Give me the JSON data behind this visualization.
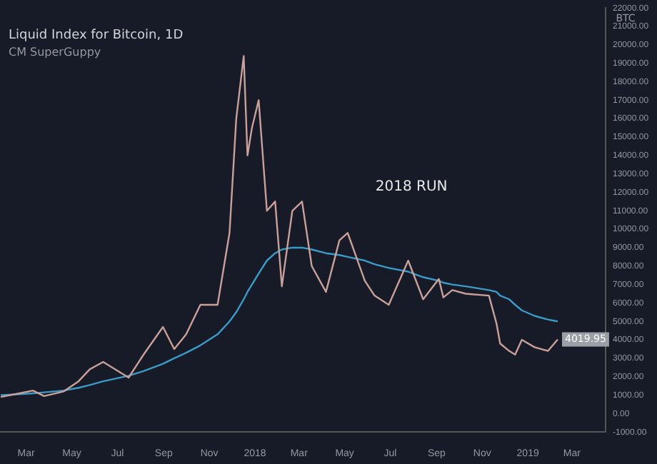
{
  "chart_data": {
    "type": "line",
    "title": "Liquid Index for Bitcoin, 1D",
    "subtitle": "CM SuperGuppy",
    "ylabel": "BTC",
    "annotations": [
      "2018 RUN"
    ],
    "x": [
      "2017-01-26",
      "2017-02-20",
      "2017-03-10",
      "2017-03-25",
      "2017-04-20",
      "2017-05-10",
      "2017-05-25",
      "2017-06-12",
      "2017-07-16",
      "2017-08-05",
      "2017-08-31",
      "2017-09-15",
      "2017-10-01",
      "2017-10-20",
      "2017-11-12",
      "2017-11-28",
      "2017-12-07",
      "2017-12-17",
      "2017-12-22",
      "2017-12-28",
      "2018-01-06",
      "2018-01-17",
      "2018-01-28",
      "2018-02-06",
      "2018-02-20",
      "2018-03-05",
      "2018-03-18",
      "2018-04-06",
      "2018-04-24",
      "2018-05-05",
      "2018-05-28",
      "2018-06-10",
      "2018-06-29",
      "2018-07-25",
      "2018-08-14",
      "2018-09-04",
      "2018-09-10",
      "2018-09-22",
      "2018-10-10",
      "2018-11-10",
      "2018-11-20",
      "2018-11-25",
      "2018-12-07",
      "2018-12-15",
      "2018-12-24",
      "2019-01-10",
      "2019-01-28",
      "2019-02-10"
    ],
    "series": [
      {
        "color": "#c9a19a",
        "values": [
          900,
          1100,
          1250,
          950,
          1200,
          1750,
          2400,
          2800,
          1950,
          3200,
          4700,
          3500,
          4300,
          5900,
          5900,
          9800,
          16000,
          19400,
          14000,
          15500,
          17000,
          11000,
          11500,
          6900,
          11000,
          11500,
          8000,
          6600,
          9400,
          9800,
          7200,
          6400,
          5900,
          8300,
          6200,
          7300,
          6300,
          6700,
          6500,
          6400,
          4900,
          3800,
          3400,
          3200,
          4000,
          3600,
          3400,
          4019.95
        ],
        "value_labels": [
          null,
          null,
          null,
          null,
          null,
          null,
          null,
          null,
          null,
          null,
          null,
          null,
          null,
          null,
          null,
          null,
          null,
          null,
          null,
          null,
          null,
          null,
          null,
          null,
          null,
          null,
          null,
          null,
          null,
          null,
          null,
          null,
          null,
          null,
          null,
          null,
          null,
          null,
          null,
          null,
          null,
          null,
          null,
          null,
          null,
          null,
          null,
          "4019.95"
        ]
      },
      {
        "color": "#3a9bc8",
        "values": [
          1000,
          1050,
          1100,
          1150,
          1250,
          1400,
          1550,
          1750,
          2050,
          2300,
          2700,
          3000,
          3300,
          3700,
          4300,
          5000,
          5500,
          6200,
          6600,
          7000,
          7600,
          8300,
          8700,
          8900,
          9000,
          9000,
          8900,
          8700,
          8600,
          8500,
          8300,
          8100,
          7900,
          7700,
          7400,
          7200,
          7100,
          7000,
          6900,
          6700,
          6600,
          6400,
          6200,
          5900,
          5600,
          5300,
          5100,
          5000
        ]
      }
    ],
    "ylim": [
      -1000,
      22000
    ],
    "yticks": [
      {
        "value": -1000,
        "label": "-1000.00"
      },
      {
        "value": 0,
        "label": "0.00"
      },
      {
        "value": 1000,
        "label": "1000.00"
      },
      {
        "value": 2000,
        "label": "2000.00"
      },
      {
        "value": 3000,
        "label": "3000.00"
      },
      {
        "value": 4000,
        "label": "4000.00"
      },
      {
        "value": 5000,
        "label": "5000.00"
      },
      {
        "value": 6000,
        "label": "6000.00"
      },
      {
        "value": 7000,
        "label": "7000.00"
      },
      {
        "value": 8000,
        "label": "8000.00"
      },
      {
        "value": 9000,
        "label": "9000.00"
      },
      {
        "value": 10000,
        "label": "10000.00"
      },
      {
        "value": 11000,
        "label": "11000.00"
      },
      {
        "value": 12000,
        "label": "12000.00"
      },
      {
        "value": 13000,
        "label": "13000.00"
      },
      {
        "value": 14000,
        "label": "14000.00"
      },
      {
        "value": 15000,
        "label": "15000.00"
      },
      {
        "value": 16000,
        "label": "16000.00"
      },
      {
        "value": 17000,
        "label": "17000.00"
      },
      {
        "value": 18000,
        "label": "18000.00"
      },
      {
        "value": 19000,
        "label": "19000.00"
      },
      {
        "value": 20000,
        "label": "20000.00"
      },
      {
        "value": 21000,
        "label": "21000.00"
      },
      {
        "value": 22000,
        "label": "22000.00"
      }
    ],
    "xlim": [
      "2017-01-25",
      "2019-04-15"
    ],
    "xticks": [
      {
        "value": "2017-03-01",
        "label": "Mar"
      },
      {
        "value": "2017-05-01",
        "label": "May"
      },
      {
        "value": "2017-07-01",
        "label": "Jul"
      },
      {
        "value": "2017-09-01",
        "label": "Sep"
      },
      {
        "value": "2017-11-01",
        "label": "Nov"
      },
      {
        "value": "2018-01-01",
        "label": "2018"
      },
      {
        "value": "2018-03-01",
        "label": "Mar"
      },
      {
        "value": "2018-05-01",
        "label": "May"
      },
      {
        "value": "2018-07-01",
        "label": "Jul"
      },
      {
        "value": "2018-09-01",
        "label": "Sep"
      },
      {
        "value": "2018-11-01",
        "label": "Nov"
      },
      {
        "value": "2019-01-01",
        "label": "2019"
      },
      {
        "value": "2019-03-01",
        "label": "Mar"
      }
    ],
    "grid": false,
    "legend": false,
    "marker": "none",
    "line_style": "solid"
  }
}
